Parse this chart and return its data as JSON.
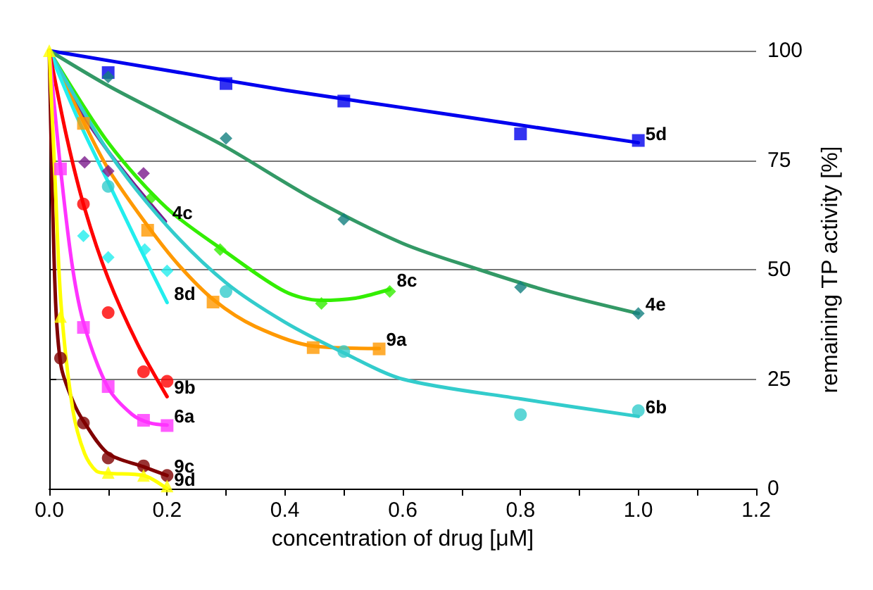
{
  "chart_data": {
    "type": "scatter",
    "xlabel": "concentration of drug [μM]",
    "ylabel": "remaining TP activity [%]",
    "xlim": [
      0,
      1.2
    ],
    "ylim": [
      0,
      100
    ],
    "xticks": [
      {
        "value": 0,
        "label": "0.0"
      },
      {
        "value": 0.1,
        "label": null
      },
      {
        "value": 0.2,
        "label": "0.2"
      },
      {
        "value": 0.3,
        "label": null
      },
      {
        "value": 0.4,
        "label": "0.4"
      },
      {
        "value": 0.5,
        "label": null
      },
      {
        "value": 0.6,
        "label": "0.6"
      },
      {
        "value": 0.7,
        "label": null
      },
      {
        "value": 0.8,
        "label": "0.8"
      },
      {
        "value": 0.9,
        "label": null
      },
      {
        "value": 1.0,
        "label": "1.0"
      },
      {
        "value": 1.1,
        "label": null
      },
      {
        "value": 1.2,
        "label": "1.2"
      }
    ],
    "yticks": [
      0,
      25,
      50,
      75,
      100
    ],
    "grid": "y",
    "legend": false,
    "line_style": "solid",
    "series": [
      {
        "marker": "square",
        "color": "#0000ee",
        "x": [
          0.1,
          0.3,
          0.5,
          0.8,
          1.0
        ],
        "values": [
          95,
          92.5,
          88.5,
          81,
          79.5
        ]
      },
      {
        "type": "line",
        "marker": "none",
        "name": "5d",
        "color": "#0000ee",
        "x": [
          0,
          0.2,
          0.4,
          0.6,
          0.8,
          1.0
        ],
        "values": [
          100,
          95.5,
          91,
          87,
          83,
          79
        ]
      },
      {
        "marker": "diamond",
        "color": "#138080",
        "x": [
          0.1,
          0.3,
          0.5,
          0.8,
          1.0
        ],
        "values": [
          94,
          80,
          61.5,
          46,
          40
        ]
      },
      {
        "type": "line",
        "marker": "none",
        "name": "4e",
        "color": "#339966",
        "x": [
          0,
          0.1,
          0.2,
          0.3,
          0.45,
          0.6,
          0.73,
          0.85,
          1.0
        ],
        "values": [
          100,
          92,
          85,
          78,
          66,
          56,
          50,
          45,
          40
        ]
      },
      {
        "marker": "diamond",
        "color": "#7a1a8c",
        "x": [
          0.06,
          0.1,
          0.16
        ],
        "values": [
          74.5,
          72.5,
          72
        ]
      },
      {
        "type": "line",
        "marker": "none",
        "name": "4c",
        "color": "#7a1a8c",
        "x": [
          0,
          0.05,
          0.1,
          0.15,
          0.197
        ],
        "values": [
          100,
          87,
          77,
          68.5,
          61
        ]
      },
      {
        "marker": "diamond",
        "color": "#33ee00",
        "x": [
          0.174,
          0.29,
          0.462,
          0.578
        ],
        "values": [
          66.5,
          54.6,
          42.3,
          45
        ]
      },
      {
        "type": "line",
        "marker": "none",
        "name": "8c",
        "color": "#33ee00",
        "x": [
          0,
          0.1,
          0.2,
          0.3,
          0.4,
          0.46,
          0.52,
          0.578
        ],
        "values": [
          100,
          79,
          64,
          54,
          45,
          43,
          43.5,
          45.5
        ]
      },
      {
        "marker": "square",
        "color": "#ff9900",
        "x": [
          0.058,
          0.167,
          0.278,
          0.448,
          0.56
        ],
        "values": [
          83.4,
          59,
          42.6,
          32.2,
          31.9
        ]
      },
      {
        "type": "line",
        "marker": "none",
        "name": "9a",
        "color": "#ff9900",
        "x": [
          0,
          0.05,
          0.1,
          0.167,
          0.22,
          0.28,
          0.35,
          0.45,
          0.56
        ],
        "values": [
          100,
          86,
          73,
          60,
          51,
          43,
          37,
          32.5,
          32
        ]
      },
      {
        "marker": "circle",
        "color": "#33cccc",
        "x": [
          0.1,
          0.3,
          0.5,
          0.8,
          1.0
        ],
        "values": [
          69,
          45,
          31.3,
          16.9,
          17.8
        ]
      },
      {
        "type": "line",
        "marker": "none",
        "name": "6b",
        "color": "#33cccc",
        "x": [
          0,
          0.1,
          0.2,
          0.3,
          0.4,
          0.5,
          0.6,
          0.8,
          1.0
        ],
        "values": [
          100,
          77,
          60,
          47,
          38,
          31,
          25,
          20.5,
          16.5
        ]
      },
      {
        "marker": "diamond",
        "color": "#22eeee",
        "x": [
          0.058,
          0.1,
          0.162,
          0.2
        ],
        "values": [
          57.7,
          52.8,
          54.6,
          49.7
        ]
      },
      {
        "type": "line",
        "marker": "none",
        "name": "8d",
        "color": "#22eeee",
        "x": [
          0,
          0.05,
          0.1,
          0.15,
          0.2
        ],
        "values": [
          100,
          84,
          70,
          56,
          42.5
        ]
      },
      {
        "marker": "circle",
        "color": "#ff0000",
        "x": [
          0.058,
          0.1,
          0.16,
          0.2
        ],
        "values": [
          65,
          40.2,
          26.7,
          24.5
        ]
      },
      {
        "type": "line",
        "marker": "none",
        "name": "9b",
        "color": "#ff0000",
        "x": [
          0,
          0.03,
          0.06,
          0.1,
          0.15,
          0.2
        ],
        "values": [
          100,
          80,
          64,
          48,
          33,
          21
        ]
      },
      {
        "marker": "square",
        "color": "#ff33ff",
        "x": [
          0.019,
          0.058,
          0.1,
          0.16,
          0.2
        ],
        "values": [
          73,
          36.8,
          23.3,
          15.6,
          14.4
        ]
      },
      {
        "type": "line",
        "marker": "none",
        "name": "6a",
        "color": "#ff33ff",
        "x": [
          0,
          0.02,
          0.04,
          0.06,
          0.1,
          0.14,
          0.17,
          0.2
        ],
        "values": [
          100,
          72,
          50,
          37,
          23,
          17,
          15,
          14.5
        ]
      },
      {
        "marker": "circle",
        "color": "#800000",
        "x": [
          0.019,
          0.058,
          0.1,
          0.16,
          0.2
        ],
        "values": [
          29.8,
          15,
          7,
          5.2,
          3
        ]
      },
      {
        "type": "line",
        "marker": "none",
        "name": "9c",
        "color": "#800000",
        "x": [
          0,
          0.01,
          0.02,
          0.04,
          0.06,
          0.1,
          0.16,
          0.2
        ],
        "values": [
          100,
          45,
          28,
          20,
          15,
          8,
          5,
          3
        ]
      },
      {
        "marker": "triangle",
        "color": "#ffff00",
        "x": [
          0,
          0.019,
          0.1,
          0.16,
          0.2
        ],
        "values": [
          100,
          39.3,
          3.7,
          3,
          0.6
        ]
      },
      {
        "type": "line",
        "marker": "none",
        "name": "9d",
        "color": "#ffff00",
        "x": [
          0,
          0.01,
          0.02,
          0.04,
          0.06,
          0.08,
          0.1,
          0.16,
          0.2
        ],
        "values": [
          100,
          70,
          42,
          18,
          8,
          4,
          3.5,
          3,
          0
        ]
      }
    ]
  }
}
